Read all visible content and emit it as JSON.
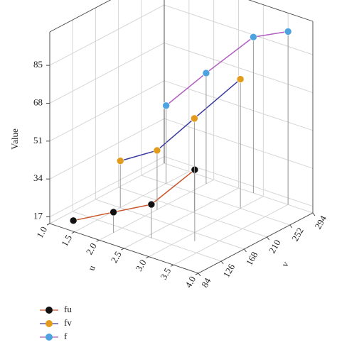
{
  "chart_data": {
    "type": "scatter3d",
    "z_label": "Value",
    "u_label": "u",
    "v_label": "v",
    "ulim": [
      1,
      4
    ],
    "uticks": [
      {
        "value": 1,
        "label": "1.0"
      },
      1.5,
      {
        "value": 2,
        "label": "2.0"
      },
      2.5,
      {
        "value": 3,
        "label": "3.0"
      },
      3.5,
      {
        "value": 4,
        "label": "4.0"
      }
    ],
    "vlim": [
      84,
      294
    ],
    "vticks": [
      84,
      126,
      168,
      210,
      252,
      294
    ],
    "zlim": [
      14,
      100
    ],
    "zticks": [
      17,
      34,
      51,
      68,
      85
    ],
    "grid": true,
    "series": [
      {
        "name": "fu",
        "color": "#111111",
        "line_color": "#c8552a",
        "u": [
          1.3,
          2.0,
          2.6,
          3.2
        ],
        "v": [
          100,
          110,
          125,
          150
        ],
        "values": [
          15.5,
          23.2,
          29.2,
          46
        ]
      },
      {
        "name": "fv",
        "color": "#e39b1b",
        "line_color": "#3a3aa0",
        "u": [
          1.5,
          2.0,
          2.5,
          3.0
        ],
        "v": [
          168,
          190,
          213,
          252
        ],
        "values": [
          35,
          40.6,
          55.7,
          72
        ]
      },
      {
        "name": "f",
        "color": "#4da3e0",
        "line_color": "#b05cc0",
        "u": [
          1.5,
          2.0,
          2.8,
          3.5
        ],
        "v": [
          252,
          280,
          294,
          294
        ],
        "values": [
          49,
          63.7,
          84,
          91.7
        ]
      }
    ]
  }
}
